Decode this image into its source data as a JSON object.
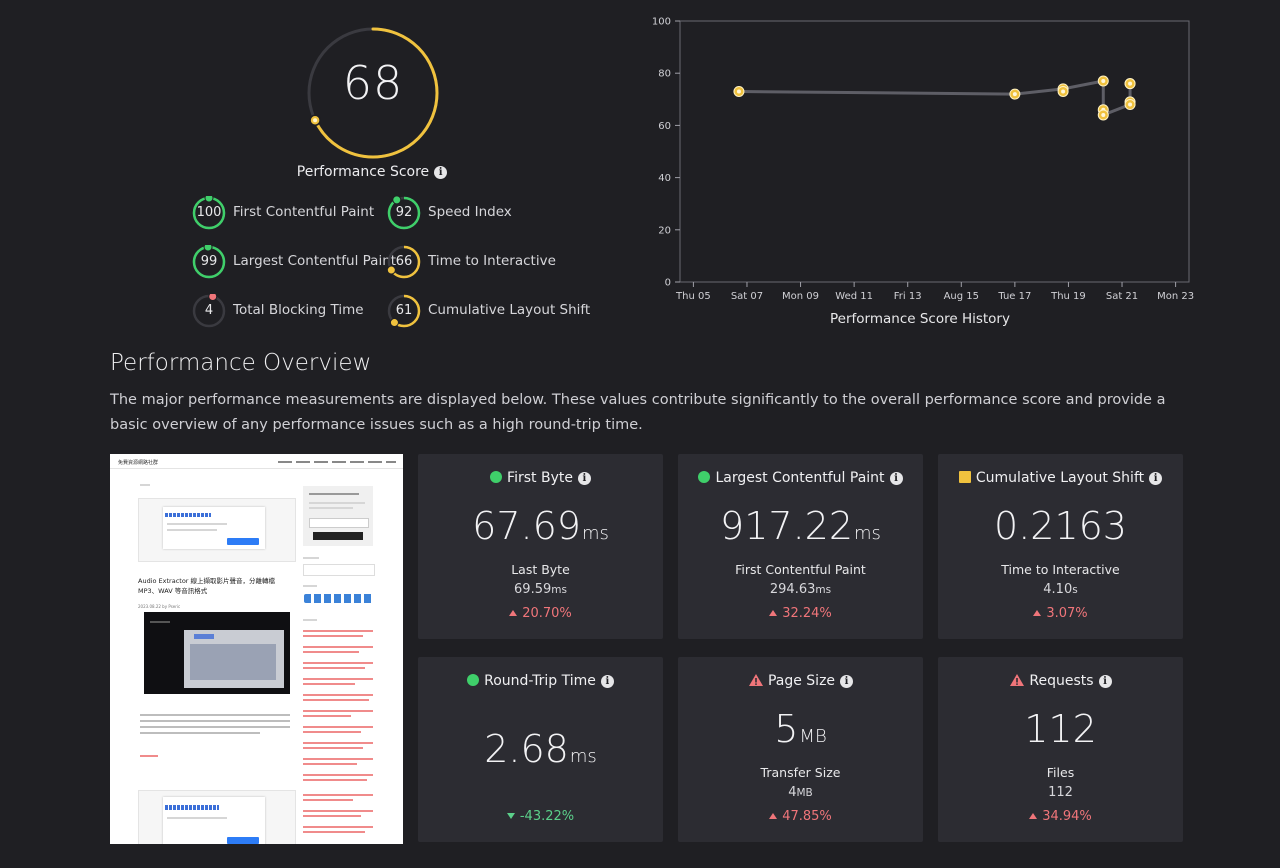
{
  "score": {
    "value": "68",
    "fraction": 0.68,
    "label": "Performance Score"
  },
  "metrics": [
    {
      "score": "100",
      "label": "First Contentful Paint",
      "fraction": 1.0,
      "color": "#3fcf6a"
    },
    {
      "score": "92",
      "label": "Speed Index",
      "fraction": 0.92,
      "color": "#3fcf6a"
    },
    {
      "score": "99",
      "label": "Largest Contentful Paint",
      "fraction": 0.99,
      "color": "#3fcf6a"
    },
    {
      "score": "66",
      "label": "Time to Interactive",
      "fraction": 0.66,
      "color": "#f0c23e"
    },
    {
      "score": "4",
      "label": "Total Blocking Time",
      "fraction": 0.04,
      "color": "#f0757a"
    },
    {
      "score": "61",
      "label": "Cumulative Layout Shift",
      "fraction": 0.61,
      "color": "#f0c23e"
    }
  ],
  "chart_data": {
    "type": "line",
    "title": "",
    "xlabel": "Performance Score History",
    "ylabel": "",
    "ylim": [
      0,
      100
    ],
    "yticks": [
      "0",
      "20",
      "40",
      "60",
      "80",
      "100"
    ],
    "xticks": [
      "Thu 05",
      "Sat 07",
      "Mon 09",
      "Wed 11",
      "Fri 13",
      "Aug 15",
      "Tue 17",
      "Thu 19",
      "Sat 21",
      "Mon 23"
    ],
    "x_day_range": [
      4.5,
      23.5
    ],
    "series": [
      {
        "x": [
          6.7,
          17.0,
          18.8,
          18.8,
          20.3,
          20.3,
          20.3,
          21.3,
          21.3,
          21.3,
          21.3
        ],
        "y": [
          73,
          72,
          74,
          73,
          77,
          66,
          64,
          69,
          68,
          76,
          76
        ]
      }
    ],
    "path_order": [
      0,
      1,
      2,
      4,
      6,
      8,
      9
    ],
    "grid": false
  },
  "overview": {
    "title": "Performance Overview",
    "description": "The major performance measurements are displayed below. These values contribute significantly to the overall performance score and provide a basic overview of any performance issues such as a high round-trip time."
  },
  "screenshot": {
    "site_title": "免費資源網路社群",
    "article_title": "Audio Extractor 線上擷取影片聲音，分離轉檔 MP3、WAV 等音訊格式",
    "article_date": "2023.08.22 by Pseric"
  },
  "cards": [
    {
      "status": "good",
      "title": "First Byte",
      "value": "67.69",
      "unit": "ms",
      "sub_label": "Last Byte",
      "sub_value": "69.59",
      "sub_unit": "ms",
      "delta": "20.70%",
      "direction": "up"
    },
    {
      "status": "good",
      "title": "Largest Contentful Paint",
      "value": "917.22",
      "unit": "ms",
      "sub_label": "First Contentful Paint",
      "sub_value": "294.63",
      "sub_unit": "ms",
      "delta": "32.24%",
      "direction": "up"
    },
    {
      "status": "average",
      "title": "Cumulative Layout Shift",
      "value": "0.2163",
      "unit": "",
      "sub_label": "Time to Interactive",
      "sub_value": "4.10",
      "sub_unit": "s",
      "delta": "3.07%",
      "direction": "up"
    },
    {
      "status": "good",
      "title": "Round-Trip Time",
      "value": "2.68",
      "unit": "ms",
      "sub_label": "",
      "sub_value": "",
      "sub_unit": "",
      "delta": "-43.22%",
      "direction": "down"
    },
    {
      "status": "warning",
      "title": "Page Size",
      "value": "5",
      "unit": "MB",
      "sub_label": "Transfer Size",
      "sub_value": "4",
      "sub_unit": "MB",
      "delta": "47.85%",
      "direction": "up"
    },
    {
      "status": "warning",
      "title": "Requests",
      "value": "112",
      "unit": "",
      "sub_label": "Files",
      "sub_value": "112",
      "sub_unit": "",
      "delta": "34.94%",
      "direction": "up"
    }
  ],
  "colors": {
    "good": "#3fcf6a",
    "average": "#f0c23e",
    "poor": "#f0757a",
    "point": "#f0c23e",
    "line": "#5e5e66"
  }
}
